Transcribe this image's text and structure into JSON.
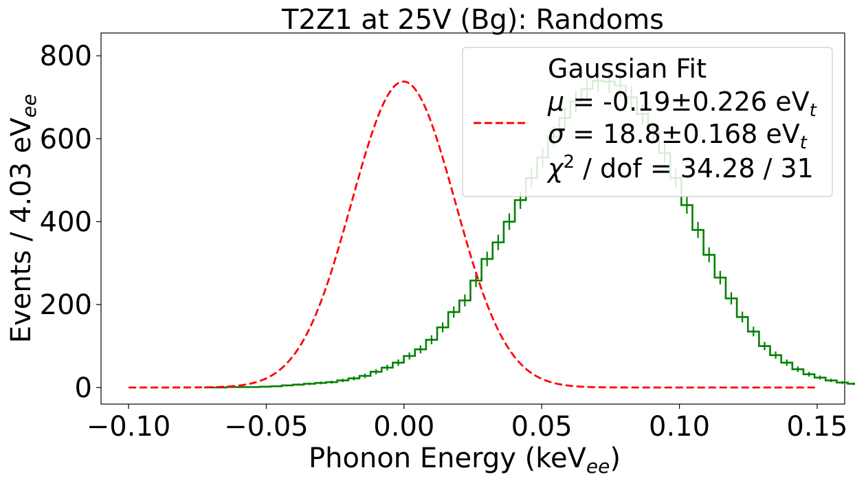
{
  "chart_data": {
    "type": "histogram",
    "title": "T2Z1 at 25V (Bg): Randoms",
    "xlabel": {
      "main": "Phonon Energy (keV",
      "sub": "ee",
      "end": ")"
    },
    "ylabel": {
      "main": "Events / 4.03 eV",
      "sub": "ee"
    },
    "xlim": [
      -0.11,
      0.16
    ],
    "ylim": [
      -40,
      855
    ],
    "xticks": [
      -0.1,
      -0.05,
      0.0,
      0.05,
      0.1,
      0.15
    ],
    "xtick_labels": [
      "−0.10",
      "−0.05",
      "0.00",
      "0.05",
      "0.10",
      "0.15"
    ],
    "yticks": [
      0,
      200,
      400,
      600,
      800
    ],
    "ytick_labels": [
      "0",
      "200",
      "400",
      "600",
      "800"
    ],
    "grid": false,
    "legend_position": "top-right",
    "histogram": {
      "bin_width": 0.00403,
      "bin_start": -0.0726,
      "color": "#008000",
      "counts": [
        0,
        0,
        1,
        1,
        1,
        2,
        3,
        5,
        7,
        9,
        11,
        13,
        17,
        22,
        28,
        38,
        48,
        60,
        76,
        92,
        115,
        145,
        182,
        210,
        258,
        310,
        350,
        400,
        452,
        505,
        555,
        605,
        650,
        690,
        720,
        740,
        738,
        728,
        700,
        660,
        615,
        565,
        505,
        440,
        380,
        320,
        265,
        215,
        170,
        135,
        100,
        78,
        60,
        44,
        32,
        24,
        17,
        12,
        9,
        6,
        4,
        3,
        2,
        1,
        1,
        1,
        0,
        0,
        0,
        0,
        0,
        0,
        0,
        0,
        0,
        0,
        0,
        0,
        0,
        0,
        0,
        0,
        0,
        0,
        0,
        0,
        0,
        0,
        0,
        0,
        0,
        0,
        0,
        0
      ]
    },
    "series": [
      {
        "name": "Gaussian Fit",
        "style": "dashed",
        "color": "#ff0000",
        "amplitude": 738,
        "mu": -0.00019,
        "sigma": 0.0188,
        "x_range": [
          -0.1,
          0.15
        ]
      }
    ],
    "legend": {
      "label": "Gaussian Fit",
      "lines": [
        {
          "sym": "μ",
          "text": " = -0.19±0.226 eV",
          "sub": "t"
        },
        {
          "sym": "σ",
          "text": " = 18.8±0.168 eV",
          "sub": "t"
        },
        {
          "sym": "χ",
          "sup": "2",
          "text": " / dof = 34.28 / 31"
        }
      ]
    }
  }
}
